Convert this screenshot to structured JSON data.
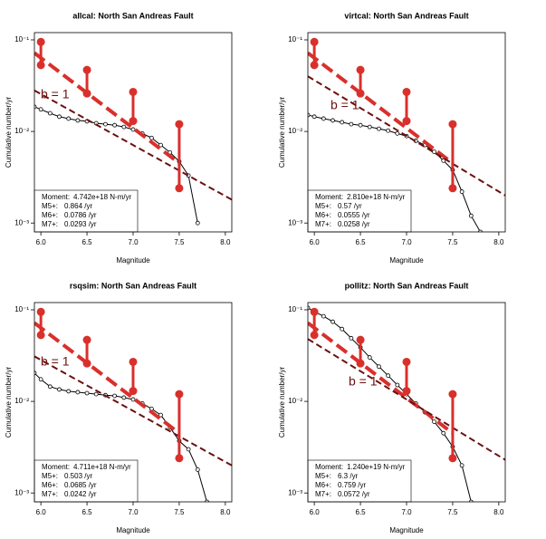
{
  "chart_data": [
    {
      "type": "line",
      "title": "allcal:  North San Andreas Fault",
      "xlabel": "Magnitude",
      "ylabel": "Cumulative number/yr",
      "log_y": true,
      "xlim": [
        5.93,
        8.07
      ],
      "ylim": [
        0.0008,
        0.12
      ],
      "xticks": [
        {
          "value": 6,
          "label": "6.0"
        },
        {
          "value": 6.5,
          "label": "6.5"
        },
        {
          "value": 7,
          "label": "7.0"
        },
        {
          "value": 7.5,
          "label": "7.5"
        },
        {
          "value": 8,
          "label": "8.0"
        }
      ],
      "yticks": [
        {
          "value": 0.1,
          "label": "10⁻¹"
        },
        {
          "value": 0.01,
          "label": "10⁻²"
        },
        {
          "value": 0.001,
          "label": "10⁻³"
        }
      ],
      "series": [
        {
          "color": "#000000",
          "markers": true,
          "dashed": false,
          "width": 1,
          "x": [
            5.93,
            6.0,
            6.1,
            6.2,
            6.3,
            6.4,
            6.5,
            6.6,
            6.7,
            6.8,
            6.9,
            7.0,
            7.1,
            7.2,
            7.3,
            7.4,
            7.5,
            7.6,
            7.7
          ],
          "values": [
            0.0186,
            0.0174,
            0.0158,
            0.0145,
            0.0138,
            0.0132,
            0.0129,
            0.0123,
            0.012,
            0.0117,
            0.0112,
            0.0105,
            0.0095,
            0.0085,
            0.0071,
            0.0059,
            0.0047,
            0.0033,
            0.001
          ]
        },
        {
          "color": "#d9302c",
          "markers": false,
          "dashed": true,
          "width": 4,
          "x": [
            5.93,
            7.5
          ],
          "values": [
            0.072,
            0.0045
          ]
        },
        {
          "color": "#6b1010",
          "markers": false,
          "dashed": true,
          "width": 2,
          "x": [
            5.93,
            8.07
          ],
          "values": [
            0.028,
            0.0018
          ]
        }
      ],
      "error_bars": {
        "color": "#d9302c",
        "x": [
          6.0,
          6.5,
          7.0,
          7.5
        ],
        "high": [
          0.095,
          0.047,
          0.027,
          0.012
        ],
        "low": [
          0.053,
          0.026,
          0.013,
          0.0024
        ]
      },
      "annotation": "b = 1",
      "legend_box": [
        {
          "label": "Moment:",
          "value": "4.742e+18 N-m/yr"
        },
        {
          "label": "M5+:",
          "value": "0.864 /yr"
        },
        {
          "label": "M6+:",
          "value": "0.0786 /yr"
        },
        {
          "label": "M7+:",
          "value": "0.0293 /yr"
        }
      ]
    },
    {
      "type": "line",
      "title": "virtcal:  North San Andreas Fault",
      "xlabel": "Magnitude",
      "ylabel": "Cumulative number/yr",
      "log_y": true,
      "xlim": [
        5.93,
        8.07
      ],
      "ylim": [
        0.0008,
        0.12
      ],
      "xticks": [
        {
          "value": 6,
          "label": "6.0"
        },
        {
          "value": 6.5,
          "label": "6.5"
        },
        {
          "value": 7,
          "label": "7.0"
        },
        {
          "value": 7.5,
          "label": "7.5"
        },
        {
          "value": 8,
          "label": "8.0"
        }
      ],
      "yticks": [
        {
          "value": 0.1,
          "label": "10⁻¹"
        },
        {
          "value": 0.01,
          "label": "10⁻²"
        },
        {
          "value": 0.001,
          "label": "10⁻³"
        }
      ],
      "series": [
        {
          "color": "#000000",
          "markers": true,
          "dashed": false,
          "width": 1,
          "x": [
            5.93,
            6.0,
            6.1,
            6.2,
            6.3,
            6.4,
            6.5,
            6.6,
            6.7,
            6.8,
            6.9,
            7.0,
            7.1,
            7.2,
            7.3,
            7.4,
            7.5,
            7.6,
            7.7,
            7.8
          ],
          "values": [
            0.0151,
            0.0145,
            0.0138,
            0.0132,
            0.0126,
            0.012,
            0.0117,
            0.0112,
            0.0107,
            0.0102,
            0.0095,
            0.0089,
            0.0079,
            0.0071,
            0.006,
            0.0048,
            0.0038,
            0.0022,
            0.0012,
            0.0008
          ]
        },
        {
          "color": "#d9302c",
          "markers": false,
          "dashed": true,
          "width": 4,
          "x": [
            5.93,
            7.5
          ],
          "values": [
            0.072,
            0.0045
          ]
        },
        {
          "color": "#6b1010",
          "markers": false,
          "dashed": true,
          "width": 2,
          "x": [
            5.93,
            8.07
          ],
          "values": [
            0.04,
            0.002
          ]
        }
      ],
      "error_bars": {
        "color": "#d9302c",
        "x": [
          6.0,
          6.5,
          7.0,
          7.5
        ],
        "high": [
          0.095,
          0.047,
          0.027,
          0.012
        ],
        "low": [
          0.053,
          0.026,
          0.013,
          0.0024
        ]
      },
      "annotation": "b = 1",
      "legend_box": [
        {
          "label": "Moment:",
          "value": "2.810e+18 N-m/yr"
        },
        {
          "label": "M5+:",
          "value": "0.57 /yr"
        },
        {
          "label": "M6+:",
          "value": "0.0555 /yr"
        },
        {
          "label": "M7+:",
          "value": "0.0258 /yr"
        }
      ]
    },
    {
      "type": "line",
      "title": "rsqsim:  North San Andreas Fault",
      "xlabel": "Magnitude",
      "ylabel": "Cumulative number/yr",
      "log_y": true,
      "xlim": [
        5.93,
        8.07
      ],
      "ylim": [
        0.0008,
        0.12
      ],
      "xticks": [
        {
          "value": 6,
          "label": "6.0"
        },
        {
          "value": 6.5,
          "label": "6.5"
        },
        {
          "value": 7,
          "label": "7.0"
        },
        {
          "value": 7.5,
          "label": "7.5"
        },
        {
          "value": 8,
          "label": "8.0"
        }
      ],
      "yticks": [
        {
          "value": 0.1,
          "label": "10⁻¹"
        },
        {
          "value": 0.01,
          "label": "10⁻²"
        },
        {
          "value": 0.001,
          "label": "10⁻³"
        }
      ],
      "series": [
        {
          "color": "#000000",
          "markers": true,
          "dashed": false,
          "width": 1,
          "x": [
            5.93,
            6.0,
            6.1,
            6.2,
            6.3,
            6.4,
            6.5,
            6.6,
            6.7,
            6.8,
            6.9,
            7.0,
            7.1,
            7.2,
            7.3,
            7.4,
            7.5,
            7.6,
            7.7,
            7.8
          ],
          "values": [
            0.0204,
            0.0174,
            0.0145,
            0.0135,
            0.0129,
            0.0126,
            0.0123,
            0.012,
            0.0117,
            0.0115,
            0.011,
            0.0105,
            0.0095,
            0.0083,
            0.0071,
            0.0052,
            0.0037,
            0.003,
            0.0018,
            0.0008
          ]
        },
        {
          "color": "#d9302c",
          "markers": false,
          "dashed": true,
          "width": 4,
          "x": [
            5.93,
            7.5
          ],
          "values": [
            0.072,
            0.0045
          ]
        },
        {
          "color": "#6b1010",
          "markers": false,
          "dashed": true,
          "width": 2,
          "x": [
            5.93,
            8.07
          ],
          "values": [
            0.031,
            0.002
          ]
        }
      ],
      "error_bars": {
        "color": "#d9302c",
        "x": [
          6.0,
          6.5,
          7.0,
          7.5
        ],
        "high": [
          0.095,
          0.047,
          0.027,
          0.012
        ],
        "low": [
          0.053,
          0.026,
          0.013,
          0.0024
        ]
      },
      "annotation": "b = 1",
      "legend_box": [
        {
          "label": "Moment:",
          "value": "4.711e+18 N-m/yr"
        },
        {
          "label": "M5+:",
          "value": "0.503 /yr"
        },
        {
          "label": "M6+:",
          "value": "0.0685 /yr"
        },
        {
          "label": "M7+:",
          "value": "0.0242 /yr"
        }
      ]
    },
    {
      "type": "line",
      "title": "pollitz:  North San Andreas Fault",
      "xlabel": "Magnitude",
      "ylabel": "Cumulative number/yr",
      "log_y": true,
      "xlim": [
        5.93,
        8.07
      ],
      "ylim": [
        0.0008,
        0.12
      ],
      "xticks": [
        {
          "value": 6,
          "label": "6.0"
        },
        {
          "value": 6.5,
          "label": "6.5"
        },
        {
          "value": 7,
          "label": "7.0"
        },
        {
          "value": 7.5,
          "label": "7.5"
        },
        {
          "value": 8,
          "label": "8.0"
        }
      ],
      "yticks": [
        {
          "value": 0.1,
          "label": "10⁻¹"
        },
        {
          "value": 0.01,
          "label": "10⁻²"
        },
        {
          "value": 0.001,
          "label": "10⁻³"
        }
      ],
      "series": [
        {
          "color": "#000000",
          "markers": true,
          "dashed": false,
          "width": 1,
          "x": [
            5.93,
            6.0,
            6.1,
            6.2,
            6.3,
            6.4,
            6.5,
            6.6,
            6.7,
            6.8,
            6.9,
            7.0,
            7.1,
            7.2,
            7.3,
            7.4,
            7.5,
            7.6,
            7.7
          ],
          "values": [
            0.105,
            0.0955,
            0.0851,
            0.0741,
            0.0617,
            0.049,
            0.0389,
            0.0302,
            0.024,
            0.0191,
            0.0151,
            0.012,
            0.0095,
            0.0076,
            0.006,
            0.0045,
            0.0032,
            0.002,
            0.0008
          ]
        },
        {
          "color": "#d9302c",
          "markers": false,
          "dashed": true,
          "width": 4,
          "x": [
            5.93,
            7.5
          ],
          "values": [
            0.072,
            0.0045
          ]
        },
        {
          "color": "#6b1010",
          "markers": false,
          "dashed": true,
          "width": 2,
          "x": [
            5.93,
            8.07
          ],
          "values": [
            0.048,
            0.0023
          ]
        }
      ],
      "error_bars": {
        "color": "#d9302c",
        "x": [
          6.0,
          6.5,
          7.0,
          7.5
        ],
        "high": [
          0.095,
          0.047,
          0.027,
          0.012
        ],
        "low": [
          0.053,
          0.026,
          0.013,
          0.0024
        ]
      },
      "annotation": "b = 1",
      "legend_box": [
        {
          "label": "Moment:",
          "value": "1.240e+19 N-m/yr"
        },
        {
          "label": "M5+:",
          "value": "6.3 /yr"
        },
        {
          "label": "M6+:",
          "value": "0.759 /yr"
        },
        {
          "label": "M7+:",
          "value": "0.0572 /yr"
        }
      ]
    }
  ]
}
